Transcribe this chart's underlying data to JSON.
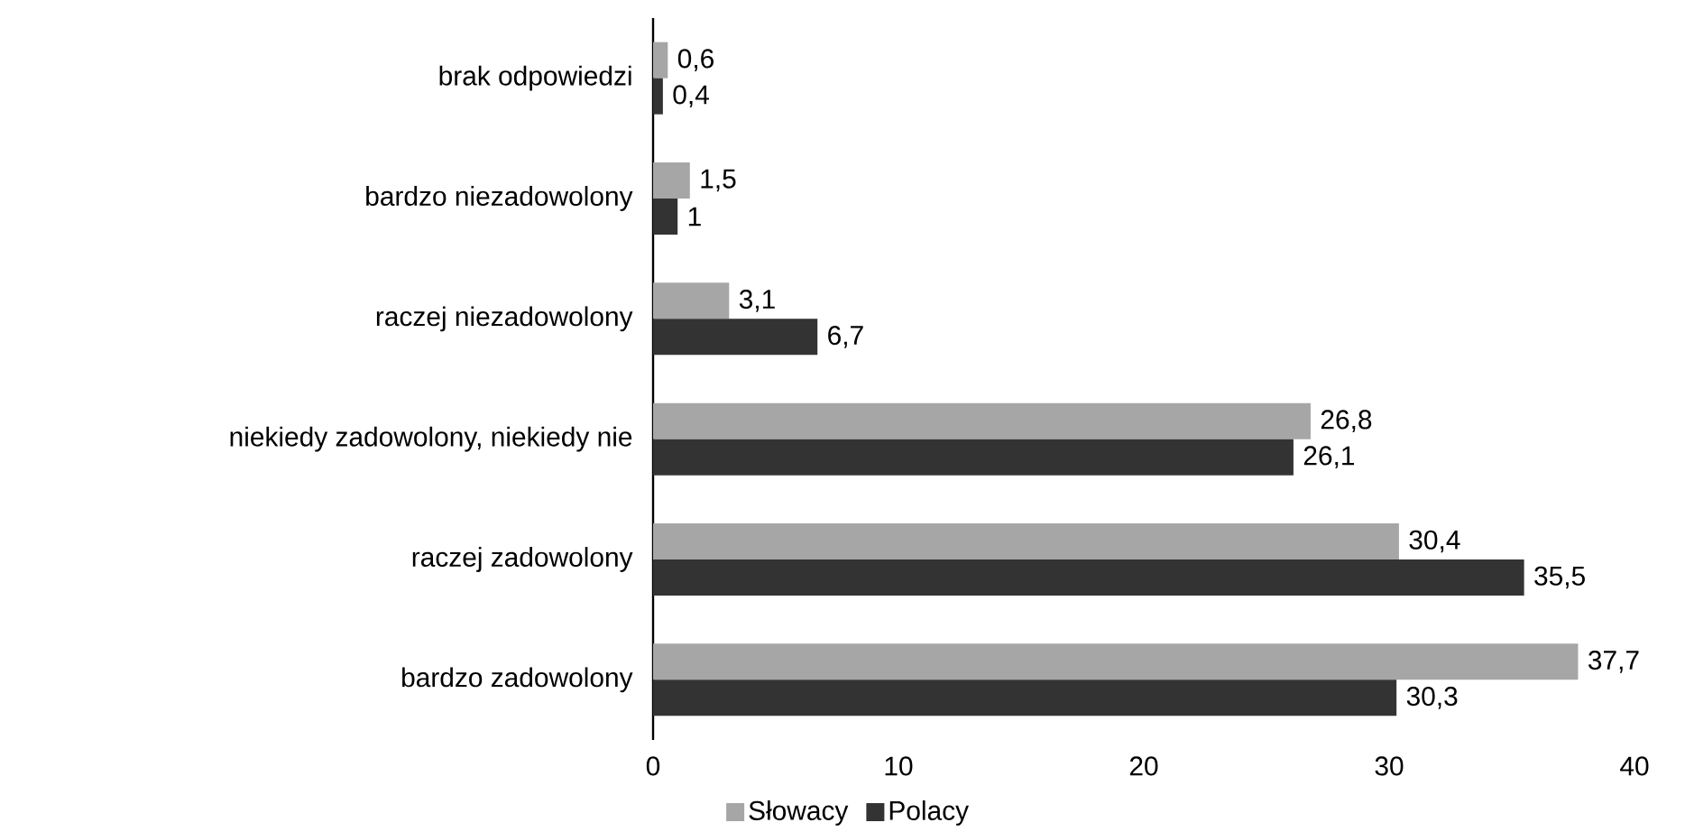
{
  "chart_data": {
    "type": "bar",
    "orientation": "horizontal",
    "categories": [
      "brak odpowiedzi",
      "bardzo niezadowolony",
      "raczej niezadowolony",
      "niekiedy zadowolony, niekiedy nie",
      "raczej zadowolony",
      "bardzo zadowolony"
    ],
    "series": [
      {
        "name": "Słowacy",
        "color": "#a6a6a6",
        "values": [
          0.6,
          1.5,
          3.1,
          26.8,
          30.4,
          37.7
        ],
        "value_labels": [
          "0,6",
          "1,5",
          "3,1",
          "26,8",
          "30,4",
          "37,7"
        ]
      },
      {
        "name": "Polacy",
        "color": "#333333",
        "values": [
          0.4,
          1,
          6.7,
          26.1,
          35.5,
          30.3
        ],
        "value_labels": [
          "0,4",
          "1",
          "6,7",
          "26,1",
          "35,5",
          "30,3"
        ]
      }
    ],
    "xlim": [
      0,
      40
    ],
    "xticks": [
      0,
      10,
      20,
      30,
      40
    ],
    "grid": false,
    "legend": "bottom"
  }
}
